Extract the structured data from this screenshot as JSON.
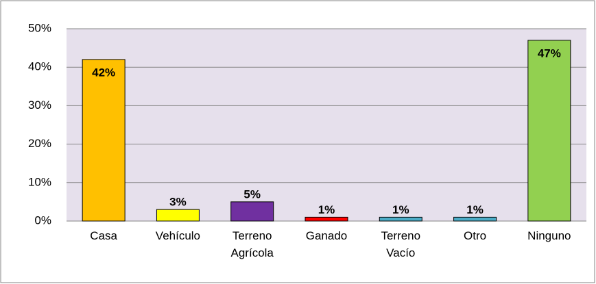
{
  "chart_data": {
    "type": "bar",
    "categories": [
      "Casa",
      "Vehículo",
      "Terreno Agrícola",
      "Ganado",
      "Terreno Vacío",
      "Otro",
      "Ninguno"
    ],
    "values": [
      42,
      3,
      5,
      1,
      1,
      1,
      47
    ],
    "value_labels": [
      "42%",
      "3%",
      "5%",
      "1%",
      "1%",
      "1%",
      "47%"
    ],
    "colors": [
      "#ffc000",
      "#ffff00",
      "#7030a0",
      "#ff0000",
      "#4bacc6",
      "#4bacc6",
      "#92d050"
    ],
    "ylim": [
      0,
      50
    ],
    "yticks": [
      {
        "value": 0,
        "label": "0%"
      },
      {
        "value": 10,
        "label": "10%"
      },
      {
        "value": 20,
        "label": "20%"
      },
      {
        "value": 30,
        "label": "30%"
      },
      {
        "value": 40,
        "label": "40%"
      },
      {
        "value": 50,
        "label": "50%"
      }
    ],
    "grid": true
  }
}
